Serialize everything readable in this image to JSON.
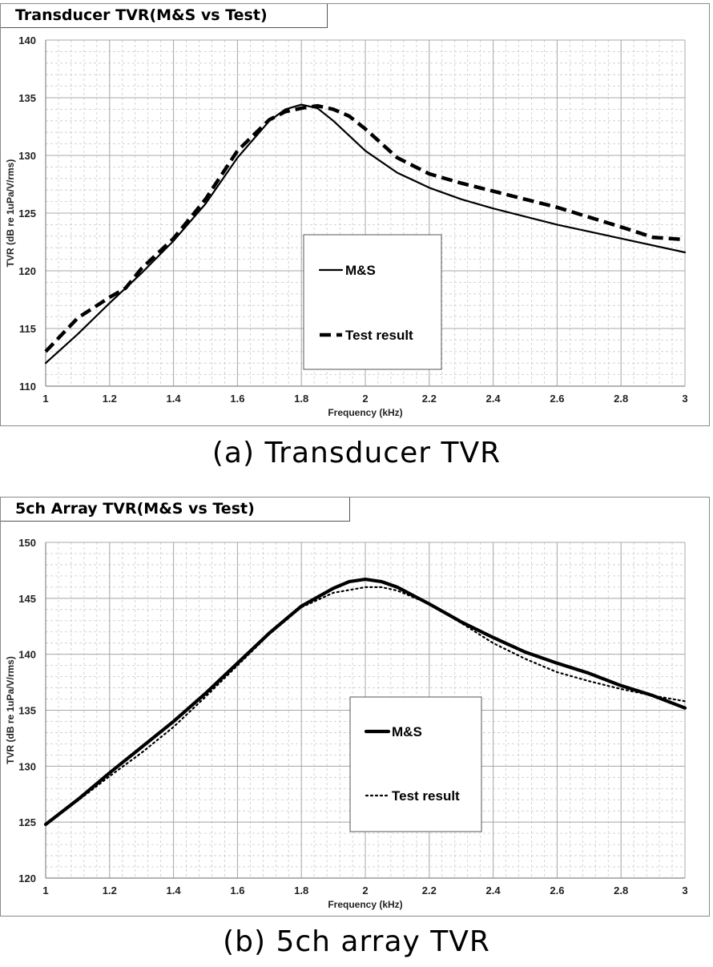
{
  "captions": {
    "a": "(a) Transducer TVR",
    "b": "(b) 5ch array TVR"
  },
  "chart_data": [
    {
      "type": "line",
      "title": "Transducer TVR(M&S vs Test)",
      "xlabel": "Frequency (kHz)",
      "ylabel": "TVR (dB re 1uPa/V/rms)",
      "xlim": [
        1,
        3
      ],
      "ylim": [
        110,
        140
      ],
      "x_ticks": [
        "1",
        "1.2",
        "1.4",
        "1.6",
        "1.8",
        "2",
        "2.2",
        "2.4",
        "2.6",
        "2.8",
        "3"
      ],
      "y_ticks": [
        "110",
        "115",
        "120",
        "125",
        "130",
        "135",
        "140"
      ],
      "grid": true,
      "legend_position": "center-right",
      "series": [
        {
          "name": "M&S",
          "style": "solid",
          "color": "#000000",
          "x": [
            1.0,
            1.1,
            1.2,
            1.3,
            1.4,
            1.5,
            1.6,
            1.7,
            1.75,
            1.8,
            1.85,
            1.9,
            2.0,
            2.1,
            2.2,
            2.3,
            2.4,
            2.6,
            2.8,
            3.0
          ],
          "y": [
            112.0,
            114.5,
            117.2,
            119.8,
            122.6,
            125.8,
            129.8,
            133.0,
            134.0,
            134.4,
            134.1,
            133.0,
            130.4,
            128.5,
            127.2,
            126.2,
            125.4,
            124.0,
            122.8,
            121.6
          ]
        },
        {
          "name": "Test result",
          "style": "dashed",
          "color": "#000000",
          "x": [
            1.0,
            1.1,
            1.2,
            1.25,
            1.3,
            1.4,
            1.5,
            1.6,
            1.7,
            1.75,
            1.8,
            1.85,
            1.9,
            1.95,
            2.0,
            2.1,
            2.2,
            2.3,
            2.4,
            2.6,
            2.8,
            2.9,
            3.0
          ],
          "y": [
            113.0,
            115.9,
            117.7,
            118.5,
            120.2,
            122.8,
            126.2,
            130.4,
            133.1,
            133.8,
            134.1,
            134.3,
            134.0,
            133.4,
            132.3,
            129.8,
            128.4,
            127.6,
            126.9,
            125.5,
            123.8,
            122.9,
            122.7
          ]
        }
      ]
    },
    {
      "type": "line",
      "title": "5ch Array TVR(M&S vs Test)",
      "xlabel": "Frequency (kHz)",
      "ylabel": "TVR (dB re 1uPa/V/rms)",
      "xlim": [
        1,
        3
      ],
      "ylim": [
        120,
        150
      ],
      "x_ticks": [
        "1",
        "1.2",
        "1.4",
        "1.6",
        "1.8",
        "2",
        "2.2",
        "2.4",
        "2.6",
        "2.8",
        "3"
      ],
      "y_ticks": [
        "120",
        "125",
        "130",
        "135",
        "140",
        "145",
        "150"
      ],
      "grid": true,
      "legend_position": "center-right",
      "series": [
        {
          "name": "M&S",
          "style": "thick-solid",
          "color": "#000000",
          "x": [
            1.0,
            1.1,
            1.2,
            1.3,
            1.4,
            1.5,
            1.6,
            1.7,
            1.8,
            1.9,
            1.95,
            2.0,
            2.05,
            2.1,
            2.2,
            2.3,
            2.4,
            2.5,
            2.6,
            2.7,
            2.8,
            2.9,
            3.0
          ],
          "y": [
            124.8,
            127.0,
            129.4,
            131.7,
            134.0,
            136.5,
            139.2,
            141.9,
            144.3,
            145.9,
            146.5,
            146.7,
            146.5,
            146.0,
            144.5,
            142.9,
            141.5,
            140.2,
            139.2,
            138.3,
            137.2,
            136.3,
            135.2
          ]
        },
        {
          "name": "Test result",
          "style": "dotted",
          "color": "#000000",
          "x": [
            1.0,
            1.1,
            1.2,
            1.3,
            1.4,
            1.5,
            1.6,
            1.7,
            1.8,
            1.9,
            2.0,
            2.05,
            2.1,
            2.2,
            2.3,
            2.4,
            2.5,
            2.6,
            2.7,
            2.8,
            2.9,
            3.0
          ],
          "y": [
            124.8,
            126.9,
            129.1,
            131.2,
            133.5,
            136.2,
            139.0,
            141.8,
            144.2,
            145.5,
            146.0,
            146.0,
            145.7,
            144.5,
            142.8,
            141.0,
            139.6,
            138.4,
            137.6,
            136.9,
            136.3,
            135.8
          ]
        }
      ]
    }
  ]
}
